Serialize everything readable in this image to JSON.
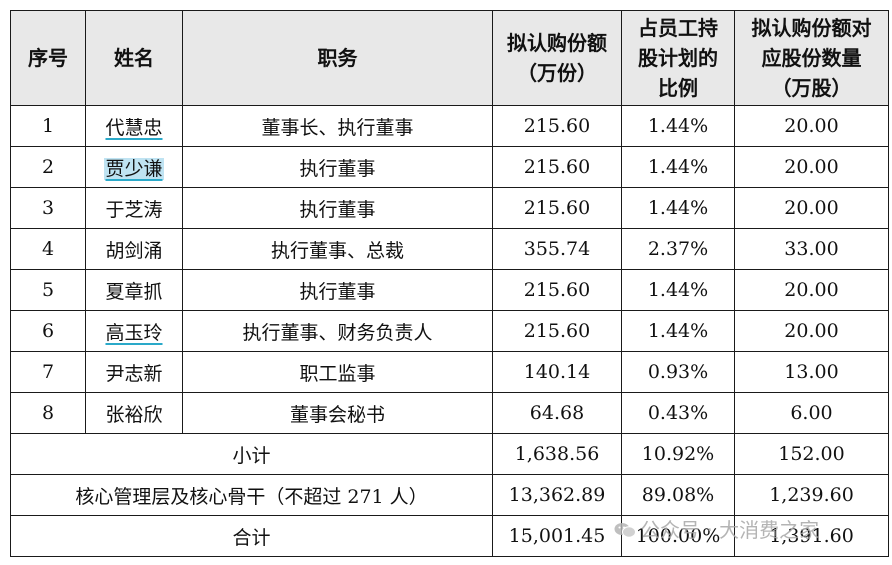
{
  "table": {
    "headers": {
      "no": "序号",
      "name": "姓名",
      "position": "职务",
      "shares_line1": "拟认购份额",
      "shares_line2": "（万份）",
      "ratio_line1": "占员工持",
      "ratio_line2": "股计划的",
      "ratio_line3": "比例",
      "stock_line1": "拟认购份额对",
      "stock_line2": "应股份数量",
      "stock_line3": "（万股）"
    },
    "rows": [
      {
        "no": "1",
        "name": "代慧忠",
        "position": "董事长、执行董事",
        "shares": "215.60",
        "ratio": "1.44%",
        "stock": "20.00"
      },
      {
        "no": "2",
        "name": "贾少谦",
        "position": "执行董事",
        "shares": "215.60",
        "ratio": "1.44%",
        "stock": "20.00"
      },
      {
        "no": "3",
        "name": "于芝涛",
        "position": "执行董事",
        "shares": "215.60",
        "ratio": "1.44%",
        "stock": "20.00"
      },
      {
        "no": "4",
        "name": "胡剑涌",
        "position": "执行董事、总裁",
        "shares": "355.74",
        "ratio": "2.37%",
        "stock": "33.00"
      },
      {
        "no": "5",
        "name": "夏章抓",
        "position": "执行董事",
        "shares": "215.60",
        "ratio": "1.44%",
        "stock": "20.00"
      },
      {
        "no": "6",
        "name": "高玉玲",
        "position": "执行董事、财务负责人",
        "shares": "215.60",
        "ratio": "1.44%",
        "stock": "20.00"
      },
      {
        "no": "7",
        "name": "尹志新",
        "position": "职工监事",
        "shares": "140.14",
        "ratio": "0.93%",
        "stock": "13.00"
      },
      {
        "no": "8",
        "name": "张裕欣",
        "position": "董事会秘书",
        "shares": "64.68",
        "ratio": "0.43%",
        "stock": "6.00"
      }
    ],
    "subtotal": {
      "label": "小计",
      "shares": "1,638.56",
      "ratio": "10.92%",
      "stock": "152.00"
    },
    "core": {
      "label": "核心管理层及核心骨干（不超过 271 人）",
      "shares": "13,362.89",
      "ratio": "89.08%",
      "stock": "1,239.60"
    },
    "total": {
      "label": "合计",
      "shares": "15,001.45",
      "ratio": "100.00%",
      "stock": "1,391.60"
    }
  },
  "watermark": {
    "text": "公众号 · 大消费之家",
    "icon": "wechat-icon"
  }
}
